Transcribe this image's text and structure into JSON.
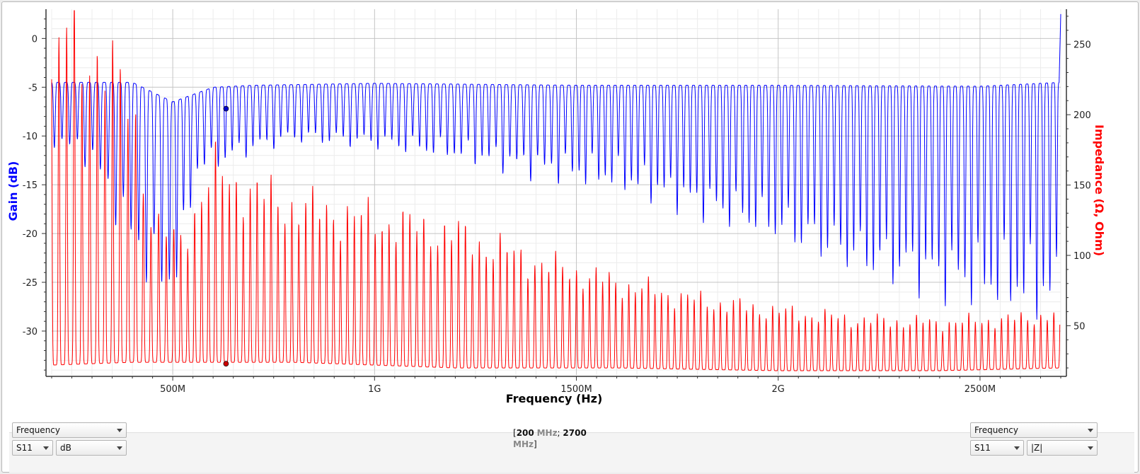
{
  "chart_data": {
    "type": "line",
    "xlabel": "Frequency (Hz)",
    "ylabel_left": "Gain (dB)",
    "ylabel_right": "Impedance (Ω, Ohm)",
    "x_range_mhz": [
      200,
      2700
    ],
    "ylim_left": [
      -34.5,
      3
    ],
    "ylim_right": [
      15,
      275
    ],
    "x_ticks": [
      {
        "value": 500,
        "label": "500M"
      },
      {
        "value": 1000,
        "label": "1G"
      },
      {
        "value": 1500,
        "label": "1500M"
      },
      {
        "value": 2000,
        "label": "2G"
      },
      {
        "value": 2500,
        "label": "2500M"
      }
    ],
    "y_ticks_left": [
      0,
      -5,
      -10,
      -15,
      -20,
      -25,
      -30
    ],
    "y_ticks_right": [
      50,
      100,
      150,
      200,
      250
    ],
    "grid": true,
    "series": [
      {
        "name": "S11",
        "unit": "dB",
        "axis": "left",
        "color": "#0000ff"
      },
      {
        "name": "S11",
        "unit": "|Z|",
        "axis": "right",
        "color": "#ff0000"
      }
    ],
    "markers": [
      {
        "series": 0,
        "x_mhz": 632,
        "y": -7.2,
        "color": "#0000cc"
      },
      {
        "series": 1,
        "x_mhz": 632,
        "y": 23,
        "color": "#cc0000"
      }
    ]
  },
  "controls": {
    "left": {
      "xsource": "Frequency",
      "param": "S11",
      "unit": "dB"
    },
    "right": {
      "xsource": "Frequency",
      "param": "S11",
      "unit": "|Z|"
    },
    "range": {
      "start": "200",
      "start_unit": "MHz",
      "sep": ";",
      "end": "2700",
      "end_unit": "MHz"
    }
  }
}
